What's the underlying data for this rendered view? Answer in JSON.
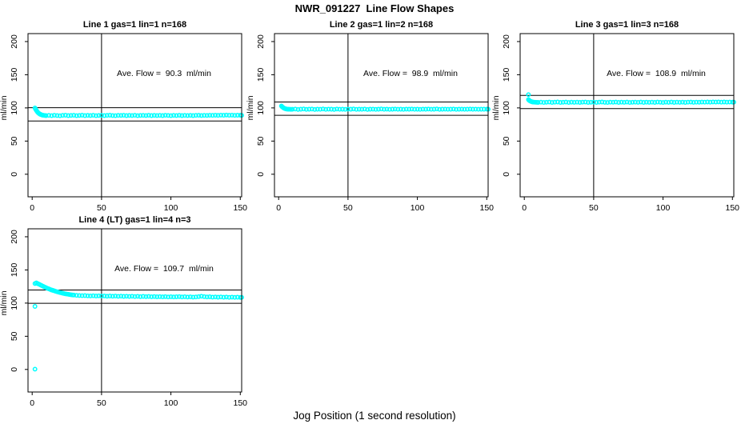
{
  "page": {
    "title": "NWR_091227  Line Flow Shapes",
    "xlabel": "Jog Position (1 second resolution)",
    "bg_color": "#FFFFFF",
    "point_color": "#00FFFF",
    "axis_color": "#000000"
  },
  "chart_data": [
    {
      "type": "scatter",
      "title": "Line 1 gas=1 lin=1 n=168",
      "annotation": "Ave. Flow =  90.3  ml/min",
      "ave_flow": 90.3,
      "ylabel": "ml/min",
      "x_ticks": [
        0,
        50,
        100,
        150
      ],
      "y_ticks": [
        0,
        50,
        100,
        150,
        200
      ],
      "xlim": [
        -3,
        151
      ],
      "ylim": [
        -34,
        212
      ],
      "vline_x": 50,
      "hlines": [
        100.3,
        80.3
      ],
      "points": [
        [
          2,
          100
        ],
        [
          2.5,
          98
        ],
        [
          3,
          96.3
        ],
        [
          3.5,
          94.8
        ],
        [
          4,
          93.5
        ],
        [
          4.5,
          92.4
        ],
        [
          5,
          91.5
        ],
        [
          5.5,
          90.8
        ],
        [
          6,
          90.2
        ],
        [
          6.5,
          89.8
        ],
        [
          7,
          89.4
        ],
        [
          7.5,
          89.1
        ],
        [
          8,
          88.9
        ],
        [
          9,
          88.6
        ],
        [
          10,
          88.4
        ],
        [
          12,
          88.8
        ],
        [
          14,
          88.3
        ],
        [
          16,
          88.9
        ],
        [
          18,
          88.5
        ],
        [
          20,
          88.2
        ],
        [
          22,
          88.7
        ],
        [
          24,
          89.0
        ],
        [
          26,
          88.4
        ],
        [
          28,
          88.6
        ],
        [
          30,
          88.9
        ],
        [
          32,
          88.3
        ],
        [
          34,
          88.6
        ],
        [
          36,
          89.0
        ],
        [
          38,
          88.4
        ],
        [
          40,
          88.7
        ],
        [
          42,
          88.5
        ],
        [
          44,
          88.9
        ],
        [
          46,
          88.3
        ],
        [
          48,
          88.6
        ],
        [
          50,
          88.8
        ],
        [
          52,
          88.4
        ],
        [
          54,
          88.7
        ],
        [
          56,
          89.0
        ],
        [
          58,
          88.5
        ],
        [
          60,
          88.3
        ],
        [
          62,
          88.8
        ],
        [
          64,
          88.6
        ],
        [
          66,
          88.9
        ],
        [
          68,
          88.4
        ],
        [
          70,
          88.7
        ],
        [
          72,
          88.5
        ],
        [
          74,
          88.9
        ],
        [
          76,
          88.3
        ],
        [
          78,
          88.6
        ],
        [
          80,
          88.8
        ],
        [
          82,
          88.5
        ],
        [
          84,
          88.9
        ],
        [
          86,
          88.4
        ],
        [
          88,
          88.7
        ],
        [
          90,
          88.5
        ],
        [
          92,
          88.8
        ],
        [
          94,
          88.4
        ],
        [
          96,
          88.9
        ],
        [
          98,
          88.6
        ],
        [
          100,
          88.3
        ],
        [
          102,
          88.8
        ],
        [
          104,
          88.5
        ],
        [
          106,
          88.9
        ],
        [
          108,
          88.4
        ],
        [
          110,
          88.7
        ],
        [
          112,
          88.5
        ],
        [
          114,
          88.8
        ],
        [
          116,
          88.4
        ],
        [
          118,
          88.7
        ],
        [
          120,
          88.9
        ],
        [
          122,
          88.5
        ],
        [
          124,
          88.8
        ],
        [
          126,
          88.6
        ],
        [
          128,
          88.9
        ],
        [
          130,
          88.7
        ],
        [
          132,
          89.0
        ],
        [
          134,
          88.8
        ],
        [
          136,
          89.1
        ],
        [
          138,
          88.9
        ],
        [
          140,
          89.2
        ],
        [
          142,
          88.9
        ],
        [
          144,
          89.1
        ],
        [
          146,
          88.8
        ],
        [
          148,
          89.0
        ],
        [
          150,
          88.9
        ],
        [
          151,
          88.8
        ]
      ]
    },
    {
      "type": "scatter",
      "title": "Line 2 gas=1 lin=2 n=168",
      "annotation": "Ave. Flow =  98.9  ml/min",
      "ave_flow": 98.9,
      "ylabel": "ml/min",
      "x_ticks": [
        0,
        50,
        100,
        150
      ],
      "y_ticks": [
        0,
        50,
        100,
        150,
        200
      ],
      "xlim": [
        -3,
        151
      ],
      "ylim": [
        -34,
        212
      ],
      "vline_x": 50,
      "hlines": [
        108.9,
        88.9
      ],
      "points": [
        [
          2,
          103
        ],
        [
          2.5,
          101.8
        ],
        [
          3,
          100.9
        ],
        [
          3.5,
          100.1
        ],
        [
          4,
          99.5
        ],
        [
          4.5,
          99.0
        ],
        [
          5,
          98.7
        ],
        [
          5.5,
          98.4
        ],
        [
          6,
          98.2
        ],
        [
          7,
          98.0
        ],
        [
          8,
          97.9
        ],
        [
          9,
          97.8
        ],
        [
          10,
          97.9
        ],
        [
          12,
          98.3
        ],
        [
          14,
          97.7
        ],
        [
          16,
          98.1
        ],
        [
          18,
          98.4
        ],
        [
          20,
          97.8
        ],
        [
          22,
          98.0
        ],
        [
          24,
          98.3
        ],
        [
          26,
          97.7
        ],
        [
          28,
          98.1
        ],
        [
          30,
          97.9
        ],
        [
          32,
          98.4
        ],
        [
          34,
          97.8
        ],
        [
          36,
          98.2
        ],
        [
          38,
          98.0
        ],
        [
          40,
          97.7
        ],
        [
          42,
          98.3
        ],
        [
          44,
          97.9
        ],
        [
          46,
          98.1
        ],
        [
          48,
          97.8
        ],
        [
          50,
          98.2
        ],
        [
          52,
          98.0
        ],
        [
          54,
          98.4
        ],
        [
          56,
          97.8
        ],
        [
          58,
          98.1
        ],
        [
          60,
          97.9
        ],
        [
          62,
          98.3
        ],
        [
          64,
          97.7
        ],
        [
          66,
          98.0
        ],
        [
          68,
          98.2
        ],
        [
          70,
          97.8
        ],
        [
          72,
          98.1
        ],
        [
          74,
          98.4
        ],
        [
          76,
          97.9
        ],
        [
          78,
          98.2
        ],
        [
          80,
          97.8
        ],
        [
          82,
          98.0
        ],
        [
          84,
          98.3
        ],
        [
          86,
          97.9
        ],
        [
          88,
          98.1
        ],
        [
          90,
          97.8
        ],
        [
          92,
          98.2
        ],
        [
          94,
          98.0
        ],
        [
          96,
          98.3
        ],
        [
          98,
          97.9
        ],
        [
          100,
          98.1
        ],
        [
          102,
          97.8
        ],
        [
          104,
          98.2
        ],
        [
          106,
          98.0
        ],
        [
          108,
          98.3
        ],
        [
          110,
          97.9
        ],
        [
          112,
          98.1
        ],
        [
          114,
          98.4
        ],
        [
          116,
          97.8
        ],
        [
          118,
          98.0
        ],
        [
          120,
          98.2
        ],
        [
          122,
          97.9
        ],
        [
          124,
          98.1
        ],
        [
          126,
          98.3
        ],
        [
          128,
          97.8
        ],
        [
          130,
          98.0
        ],
        [
          132,
          98.2
        ],
        [
          134,
          97.9
        ],
        [
          136,
          98.1
        ],
        [
          138,
          98.3
        ],
        [
          140,
          98.0
        ],
        [
          142,
          98.2
        ],
        [
          144,
          97.9
        ],
        [
          146,
          98.1
        ],
        [
          148,
          98.0
        ],
        [
          150,
          98.2
        ],
        [
          151,
          98.0
        ]
      ]
    },
    {
      "type": "scatter",
      "title": "Line 3 gas=1 lin=3 n=168",
      "annotation": "Ave. Flow =  108.9  ml/min",
      "ave_flow": 108.9,
      "ylabel": "ml/min",
      "x_ticks": [
        0,
        50,
        100,
        150
      ],
      "y_ticks": [
        0,
        50,
        100,
        150,
        200
      ],
      "xlim": [
        -3,
        151
      ],
      "ylim": [
        -34,
        212
      ],
      "vline_x": 50,
      "hlines": [
        118.9,
        98.9
      ],
      "points": [
        [
          3,
          120
        ],
        [
          3,
          112.5
        ],
        [
          3.5,
          111.4
        ],
        [
          4,
          110.6
        ],
        [
          4.5,
          110.0
        ],
        [
          5,
          109.6
        ],
        [
          5.5,
          109.2
        ],
        [
          6,
          108.9
        ],
        [
          7,
          108.7
        ],
        [
          8,
          108.5
        ],
        [
          9,
          108.4
        ],
        [
          10,
          108.3
        ],
        [
          12,
          108.6
        ],
        [
          14,
          108.2
        ],
        [
          16,
          108.5
        ],
        [
          18,
          108.8
        ],
        [
          20,
          108.3
        ],
        [
          22,
          108.6
        ],
        [
          24,
          108.9
        ],
        [
          26,
          108.3
        ],
        [
          28,
          108.5
        ],
        [
          30,
          108.8
        ],
        [
          32,
          108.2
        ],
        [
          34,
          108.6
        ],
        [
          36,
          108.4
        ],
        [
          38,
          108.7
        ],
        [
          40,
          108.3
        ],
        [
          42,
          108.6
        ],
        [
          44,
          108.8
        ],
        [
          46,
          108.3
        ],
        [
          48,
          108.5
        ],
        [
          50,
          108.7
        ],
        [
          52,
          108.3
        ],
        [
          54,
          108.6
        ],
        [
          56,
          108.9
        ],
        [
          58,
          108.4
        ],
        [
          60,
          108.2
        ],
        [
          62,
          108.7
        ],
        [
          64,
          108.5
        ],
        [
          66,
          108.8
        ],
        [
          68,
          108.3
        ],
        [
          70,
          108.6
        ],
        [
          72,
          108.4
        ],
        [
          74,
          108.8
        ],
        [
          76,
          108.2
        ],
        [
          78,
          108.5
        ],
        [
          80,
          108.7
        ],
        [
          82,
          108.4
        ],
        [
          84,
          108.8
        ],
        [
          86,
          108.3
        ],
        [
          88,
          108.6
        ],
        [
          90,
          108.4
        ],
        [
          92,
          108.7
        ],
        [
          94,
          108.3
        ],
        [
          96,
          108.8
        ],
        [
          98,
          108.5
        ],
        [
          100,
          108.2
        ],
        [
          102,
          108.7
        ],
        [
          104,
          108.4
        ],
        [
          106,
          108.8
        ],
        [
          108,
          108.3
        ],
        [
          110,
          108.6
        ],
        [
          112,
          108.4
        ],
        [
          114,
          108.7
        ],
        [
          116,
          108.3
        ],
        [
          118,
          108.6
        ],
        [
          120,
          108.8
        ],
        [
          122,
          108.4
        ],
        [
          124,
          108.7
        ],
        [
          126,
          108.5
        ],
        [
          128,
          108.8
        ],
        [
          130,
          108.6
        ],
        [
          132,
          108.9
        ],
        [
          134,
          108.7
        ],
        [
          136,
          109.0
        ],
        [
          138,
          108.8
        ],
        [
          140,
          109.0
        ],
        [
          142,
          108.7
        ],
        [
          144,
          108.9
        ],
        [
          146,
          108.6
        ],
        [
          148,
          108.8
        ],
        [
          150,
          108.7
        ],
        [
          151,
          108.6
        ]
      ]
    },
    {
      "type": "scatter",
      "title": "Line 4 (LT) gas=1 lin=4 n=3",
      "annotation": "Ave. Flow =  109.7  ml/min",
      "ave_flow": 109.7,
      "ylabel": "ml/min",
      "x_ticks": [
        0,
        50,
        100,
        150
      ],
      "y_ticks": [
        0,
        50,
        100,
        150,
        200
      ],
      "xlim": [
        -3,
        151
      ],
      "ylim": [
        -34,
        212
      ],
      "vline_x": 50,
      "hlines": [
        119.7,
        99.7
      ],
      "points": [
        [
          2,
          0.5
        ],
        [
          2,
          95
        ],
        [
          2,
          129.5
        ],
        [
          3,
          130.5
        ],
        [
          4,
          129.4
        ],
        [
          5,
          128.4
        ],
        [
          6,
          127.4
        ],
        [
          7,
          126.3
        ],
        [
          8,
          125.3
        ],
        [
          9,
          124.2
        ],
        [
          10,
          123.2
        ],
        [
          11,
          122.3
        ],
        [
          12,
          121.4
        ],
        [
          13,
          120.6
        ],
        [
          14,
          119.8
        ],
        [
          15,
          119.1
        ],
        [
          16,
          118.4
        ],
        [
          17,
          117.7
        ],
        [
          18,
          117.1
        ],
        [
          19,
          116.5
        ],
        [
          20,
          115.9
        ],
        [
          21,
          115.4
        ],
        [
          22,
          114.9
        ],
        [
          23,
          114.4
        ],
        [
          24,
          114.0
        ],
        [
          25,
          113.6
        ],
        [
          26,
          113.3
        ],
        [
          27,
          112.9
        ],
        [
          28,
          112.6
        ],
        [
          29,
          112.3
        ],
        [
          30,
          112.1
        ],
        [
          32,
          111.7
        ],
        [
          34,
          111.4
        ],
        [
          36,
          111.2
        ],
        [
          38,
          111.3
        ],
        [
          40,
          111.0
        ],
        [
          42,
          110.8
        ],
        [
          44,
          111.1
        ],
        [
          46,
          110.7
        ],
        [
          48,
          110.9
        ],
        [
          50,
          110.6
        ],
        [
          52,
          110.8
        ],
        [
          54,
          110.4
        ],
        [
          56,
          110.7
        ],
        [
          58,
          110.3
        ],
        [
          60,
          110.6
        ],
        [
          62,
          110.2
        ],
        [
          64,
          110.5
        ],
        [
          66,
          110.1
        ],
        [
          68,
          110.4
        ],
        [
          70,
          110.0
        ],
        [
          72,
          110.3
        ],
        [
          74,
          109.9
        ],
        [
          76,
          110.2
        ],
        [
          78,
          109.8
        ],
        [
          80,
          110.1
        ],
        [
          82,
          109.7
        ],
        [
          84,
          110.0
        ],
        [
          86,
          109.6
        ],
        [
          88,
          109.9
        ],
        [
          90,
          109.5
        ],
        [
          92,
          109.8
        ],
        [
          94,
          109.4
        ],
        [
          96,
          109.7
        ],
        [
          98,
          109.3
        ],
        [
          100,
          109.6
        ],
        [
          102,
          109.2
        ],
        [
          104,
          109.5
        ],
        [
          106,
          109.8
        ],
        [
          108,
          109.3
        ],
        [
          110,
          109.6
        ],
        [
          112,
          109.1
        ],
        [
          114,
          109.4
        ],
        [
          116,
          109.0
        ],
        [
          118,
          109.3
        ],
        [
          120,
          109.8
        ],
        [
          122,
          110.3
        ],
        [
          124,
          109.7
        ],
        [
          126,
          109.2
        ],
        [
          128,
          109.5
        ],
        [
          130,
          109.0
        ],
        [
          132,
          109.3
        ],
        [
          134,
          108.9
        ],
        [
          136,
          109.2
        ],
        [
          138,
          108.8
        ],
        [
          140,
          109.1
        ],
        [
          142,
          108.7
        ],
        [
          144,
          109.0
        ],
        [
          146,
          108.6
        ],
        [
          148,
          108.9
        ],
        [
          150,
          108.5
        ],
        [
          151,
          108.6
        ]
      ]
    }
  ]
}
